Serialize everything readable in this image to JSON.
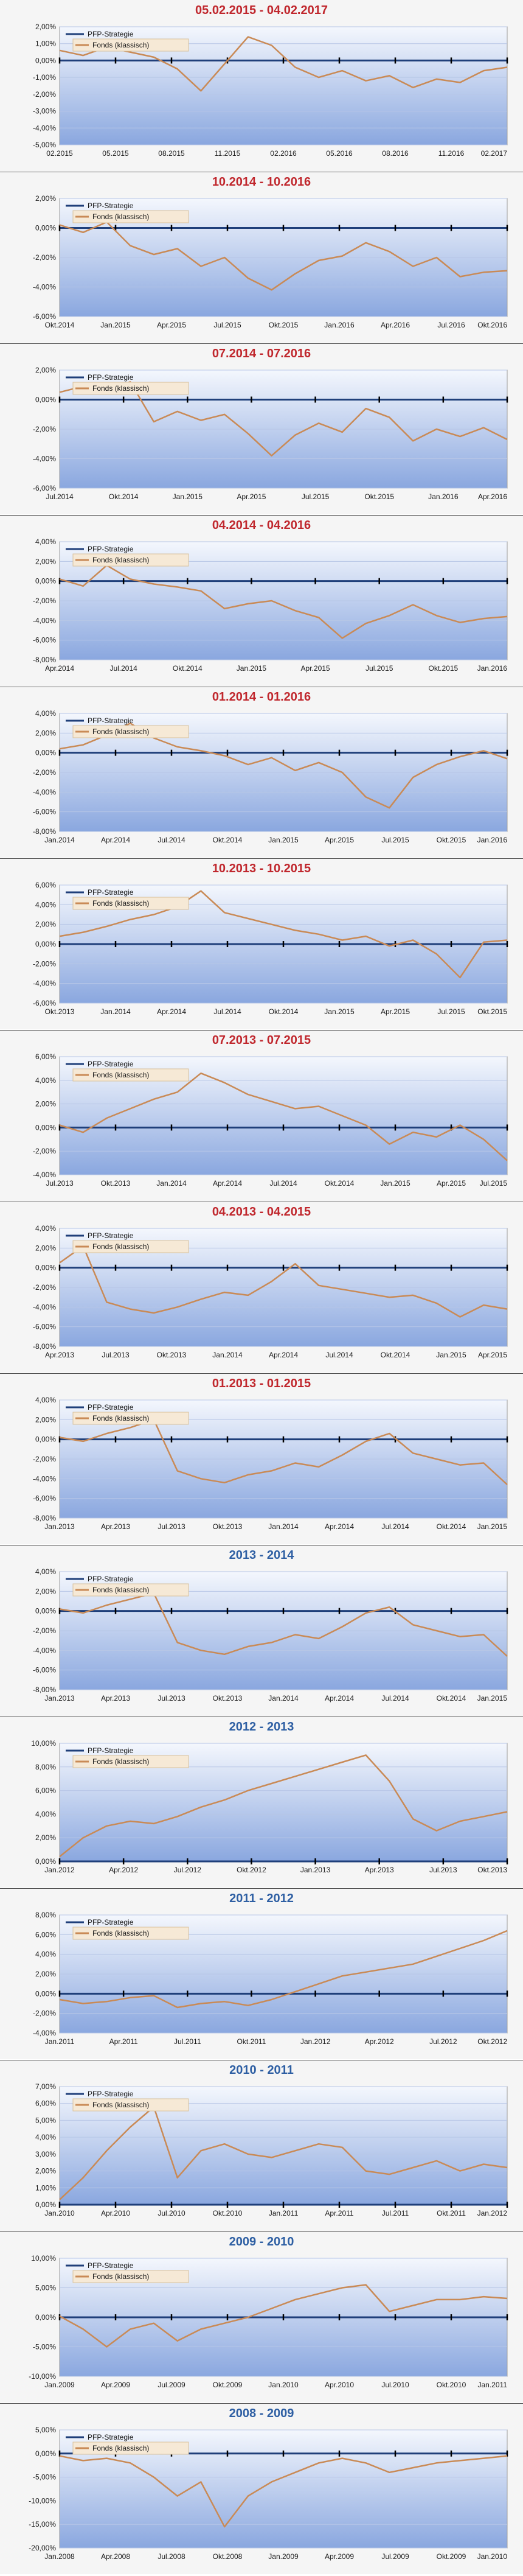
{
  "colors": {
    "title_red": "#c0272d",
    "title_blue": "#2e5fa3",
    "series_strategy": "#1f3f7a",
    "series_fund": "#c98a56",
    "plot_bg_top": "#f4f7fd",
    "plot_bg_bottom": "#8aa7df"
  },
  "legend": {
    "strategy": "PFP-Strategie",
    "fund": "Fonds (klassisch)"
  },
  "chart_data": [
    {
      "type": "line",
      "title": "05.02.2015 - 04.02.2017",
      "title_color": "red",
      "yticks": [
        "2,00%",
        "1,00%",
        "0,00%",
        "-1,00%",
        "-2,00%",
        "-3,00%",
        "-4,00%",
        "-5,00%"
      ],
      "ylim": [
        -5,
        2
      ],
      "xticks": [
        "02.2015",
        "05.2015",
        "08.2015",
        "11.2015",
        "02.2016",
        "05.2016",
        "08.2016",
        "11.2016",
        "02.2017"
      ],
      "series": [
        {
          "name": "PFP-Strategie",
          "values": [
            0,
            0
          ]
        },
        {
          "name": "Fonds (klassisch)",
          "values": [
            0.6,
            0.3,
            0.8,
            0.5,
            0.2,
            -0.5,
            -1.8,
            -0.2,
            1.4,
            0.9,
            -0.4,
            -1.0,
            -0.6,
            -1.2,
            -0.9,
            -1.6,
            -1.1,
            -1.3,
            -0.6,
            -0.4
          ]
        }
      ]
    },
    {
      "type": "line",
      "title": "10.2014 - 10.2016",
      "title_color": "red",
      "yticks": [
        "2,00%",
        "0,00%",
        "-2,00%",
        "-4,00%",
        "-6,00%"
      ],
      "ylim": [
        -6,
        2
      ],
      "xticks": [
        "Okt.2014",
        "Jan.2015",
        "Apr.2015",
        "Jul.2015",
        "Okt.2015",
        "Jan.2016",
        "Apr.2016",
        "Jul.2016",
        "Okt.2016"
      ],
      "series": [
        {
          "name": "PFP-Strategie",
          "values": [
            0,
            0
          ]
        },
        {
          "name": "Fonds (klassisch)",
          "values": [
            0.2,
            -0.3,
            0.4,
            -1.2,
            -1.8,
            -1.4,
            -2.6,
            -2.0,
            -3.4,
            -4.2,
            -3.1,
            -2.2,
            -1.9,
            -1.0,
            -1.6,
            -2.6,
            -2.0,
            -3.3,
            -3.0,
            -2.9
          ]
        }
      ]
    },
    {
      "type": "line",
      "title": "07.2014 - 07.2016",
      "title_color": "red",
      "yticks": [
        "2,00%",
        "0,00%",
        "-2,00%",
        "-4,00%",
        "-6,00%"
      ],
      "ylim": [
        -6,
        2
      ],
      "xticks": [
        "Jul.2014",
        "Okt.2014",
        "Jan.2015",
        "Apr.2015",
        "Jul.2015",
        "Okt.2015",
        "Jan.2016",
        "Apr.2016"
      ],
      "series": [
        {
          "name": "PFP-Strategie",
          "values": [
            0,
            0
          ]
        },
        {
          "name": "Fonds (klassisch)",
          "values": [
            0.5,
            0.9,
            0.7,
            1.2,
            -1.5,
            -0.8,
            -1.4,
            -1.0,
            -2.3,
            -3.8,
            -2.4,
            -1.6,
            -2.2,
            -0.6,
            -1.2,
            -2.8,
            -2.0,
            -2.5,
            -1.9,
            -2.7
          ]
        }
      ]
    },
    {
      "type": "line",
      "title": "04.2014 - 04.2016",
      "title_color": "red",
      "yticks": [
        "4,00%",
        "2,00%",
        "0,00%",
        "-2,00%",
        "-4,00%",
        "-6,00%",
        "-8,00%"
      ],
      "ylim": [
        -8,
        4
      ],
      "xticks": [
        "Apr.2014",
        "Jul.2014",
        "Okt.2014",
        "Jan.2015",
        "Apr.2015",
        "Jul.2015",
        "Okt.2015",
        "Jan.2016"
      ],
      "series": [
        {
          "name": "PFP-Strategie",
          "values": [
            0,
            0
          ]
        },
        {
          "name": "Fonds (klassisch)",
          "values": [
            0.2,
            -0.5,
            1.6,
            0.2,
            -0.3,
            -0.6,
            -1.0,
            -2.8,
            -2.3,
            -2.0,
            -3.0,
            -3.7,
            -5.8,
            -4.3,
            -3.5,
            -2.4,
            -3.5,
            -4.2,
            -3.8,
            -3.6
          ]
        }
      ]
    },
    {
      "type": "line",
      "title": "01.2014 - 01.2016",
      "title_color": "red",
      "yticks": [
        "4,00%",
        "2,00%",
        "0,00%",
        "-2,00%",
        "-4,00%",
        "-6,00%",
        "-8,00%"
      ],
      "ylim": [
        -8,
        4
      ],
      "xticks": [
        "Jan.2014",
        "Apr.2014",
        "Jul.2014",
        "Okt.2014",
        "Jan.2015",
        "Apr.2015",
        "Jul.2015",
        "Okt.2015",
        "Jan.2016"
      ],
      "series": [
        {
          "name": "PFP-Strategie",
          "values": [
            0,
            0
          ]
        },
        {
          "name": "Fonds (klassisch)",
          "values": [
            0.4,
            0.8,
            1.8,
            3.0,
            1.5,
            0.6,
            0.2,
            -0.3,
            -1.2,
            -0.5,
            -1.8,
            -1.0,
            -2.0,
            -4.5,
            -5.6,
            -2.5,
            -1.2,
            -0.4,
            0.2,
            -0.6
          ]
        }
      ]
    },
    {
      "type": "line",
      "title": "10.2013 - 10.2015",
      "title_color": "red",
      "yticks": [
        "6,00%",
        "4,00%",
        "2,00%",
        "0,00%",
        "-2,00%",
        "-4,00%",
        "-6,00%"
      ],
      "ylim": [
        -6,
        6
      ],
      "xticks": [
        "Okt.2013",
        "Jan.2014",
        "Apr.2014",
        "Jul.2014",
        "Okt.2014",
        "Jan.2015",
        "Apr.2015",
        "Jul.2015",
        "Okt.2015"
      ],
      "series": [
        {
          "name": "PFP-Strategie",
          "values": [
            0,
            0
          ]
        },
        {
          "name": "Fonds (klassisch)",
          "values": [
            0.8,
            1.2,
            1.8,
            2.5,
            3.0,
            3.8,
            5.4,
            3.2,
            2.6,
            2.0,
            1.4,
            1.0,
            0.4,
            0.8,
            -0.2,
            0.4,
            -1.0,
            -3.4,
            0.2,
            0.4
          ]
        }
      ]
    },
    {
      "type": "line",
      "title": "07.2013 - 07.2015",
      "title_color": "red",
      "yticks": [
        "6,00%",
        "4,00%",
        "2,00%",
        "0,00%",
        "-2,00%",
        "-4,00%"
      ],
      "ylim": [
        -4,
        6
      ],
      "xticks": [
        "Jul.2013",
        "Okt.2013",
        "Jan.2014",
        "Apr.2014",
        "Jul.2014",
        "Okt.2014",
        "Jan.2015",
        "Apr.2015",
        "Jul.2015"
      ],
      "series": [
        {
          "name": "PFP-Strategie",
          "values": [
            0,
            0
          ]
        },
        {
          "name": "Fonds (klassisch)",
          "values": [
            0.2,
            -0.4,
            0.8,
            1.6,
            2.4,
            3.0,
            4.6,
            3.8,
            2.8,
            2.2,
            1.6,
            1.8,
            1.0,
            0.2,
            -1.4,
            -0.4,
            -0.8,
            0.2,
            -1.0,
            -2.8
          ]
        }
      ]
    },
    {
      "type": "line",
      "title": "04.2013 - 04.2015",
      "title_color": "red",
      "yticks": [
        "4,00%",
        "2,00%",
        "0,00%",
        "-2,00%",
        "-4,00%",
        "-6,00%",
        "-8,00%"
      ],
      "ylim": [
        -8,
        4
      ],
      "xticks": [
        "Apr.2013",
        "Jul.2013",
        "Okt.2013",
        "Jan.2014",
        "Apr.2014",
        "Jul.2014",
        "Okt.2014",
        "Jan.2015",
        "Apr.2015"
      ],
      "series": [
        {
          "name": "PFP-Strategie",
          "values": [
            0,
            0
          ]
        },
        {
          "name": "Fonds (klassisch)",
          "values": [
            0.5,
            2.2,
            -3.5,
            -4.2,
            -4.6,
            -4.0,
            -3.2,
            -2.5,
            -2.8,
            -1.4,
            0.4,
            -1.8,
            -2.2,
            -2.6,
            -3.0,
            -2.8,
            -3.6,
            -5.0,
            -3.8,
            -4.2
          ]
        }
      ]
    },
    {
      "type": "line",
      "title": "01.2013 - 01.2015",
      "title_color": "red",
      "yticks": [
        "4,00%",
        "2,00%",
        "0,00%",
        "-2,00%",
        "-4,00%",
        "-6,00%",
        "-8,00%"
      ],
      "ylim": [
        -8,
        4
      ],
      "xticks": [
        "Jan.2013",
        "Apr.2013",
        "Jul.2013",
        "Okt.2013",
        "Jan.2014",
        "Apr.2014",
        "Jul.2014",
        "Okt.2014",
        "Jan.2015"
      ],
      "series": [
        {
          "name": "PFP-Strategie",
          "values": [
            0,
            0
          ]
        },
        {
          "name": "Fonds (klassisch)",
          "values": [
            0.2,
            -0.2,
            0.6,
            1.2,
            2.0,
            -3.2,
            -4.0,
            -4.4,
            -3.6,
            -3.2,
            -2.4,
            -2.8,
            -1.6,
            -0.2,
            0.6,
            -1.4,
            -2.0,
            -2.6,
            -2.4,
            -4.6
          ]
        }
      ]
    },
    {
      "type": "line",
      "title": "2013 - 2014",
      "title_color": "blue",
      "yticks": [
        "4,00%",
        "2,00%",
        "0,00%",
        "-2,00%",
        "-4,00%",
        "-6,00%",
        "-8,00%"
      ],
      "ylim": [
        -8,
        4
      ],
      "xticks": [
        "Jan.2013",
        "Apr.2013",
        "Jul.2013",
        "Okt.2013",
        "Jan.2014",
        "Apr.2014",
        "Jul.2014",
        "Okt.2014",
        "Jan.2015"
      ],
      "series": [
        {
          "name": "PFP-Strategie",
          "values": [
            0,
            0
          ]
        },
        {
          "name": "Fonds (klassisch)",
          "values": [
            0.2,
            -0.2,
            0.6,
            1.2,
            1.8,
            -3.2,
            -4.0,
            -4.4,
            -3.6,
            -3.2,
            -2.4,
            -2.8,
            -1.6,
            -0.2,
            0.4,
            -1.4,
            -2.0,
            -2.6,
            -2.4,
            -4.6
          ]
        }
      ]
    },
    {
      "type": "line",
      "title": "2012 - 2013",
      "title_color": "blue",
      "yticks": [
        "10,00%",
        "8,00%",
        "6,00%",
        "4,00%",
        "2,00%",
        "0,00%"
      ],
      "ylim": [
        0,
        10
      ],
      "xticks": [
        "Jan.2012",
        "Apr.2012",
        "Jul.2012",
        "Okt.2012",
        "Jan.2013",
        "Apr.2013",
        "Jul.2013",
        "Okt.2013"
      ],
      "series": [
        {
          "name": "PFP-Strategie",
          "values": [
            0,
            0
          ]
        },
        {
          "name": "Fonds (klassisch)",
          "values": [
            0.4,
            2.0,
            3.0,
            3.4,
            3.2,
            3.8,
            4.6,
            5.2,
            6.0,
            6.6,
            7.2,
            7.8,
            8.4,
            9.0,
            6.8,
            3.6,
            2.6,
            3.4,
            3.8,
            4.2
          ]
        }
      ]
    },
    {
      "type": "line",
      "title": "2011 - 2012",
      "title_color": "blue",
      "yticks": [
        "8,00%",
        "6,00%",
        "4,00%",
        "2,00%",
        "0,00%",
        "-2,00%",
        "-4,00%"
      ],
      "ylim": [
        -4,
        8
      ],
      "xticks": [
        "Jan.2011",
        "Apr.2011",
        "Jul.2011",
        "Okt.2011",
        "Jan.2012",
        "Apr.2012",
        "Jul.2012",
        "Okt.2012"
      ],
      "series": [
        {
          "name": "PFP-Strategie",
          "values": [
            0,
            0
          ]
        },
        {
          "name": "Fonds (klassisch)",
          "values": [
            -0.6,
            -1.0,
            -0.8,
            -0.4,
            -0.2,
            -1.4,
            -1.0,
            -0.8,
            -1.2,
            -0.6,
            0.2,
            1.0,
            1.8,
            2.2,
            2.6,
            3.0,
            3.8,
            4.6,
            5.4,
            6.4
          ]
        }
      ]
    },
    {
      "type": "line",
      "title": "2010 - 2011",
      "title_color": "blue",
      "yticks": [
        "7,00%",
        "6,00%",
        "5,00%",
        "4,00%",
        "3,00%",
        "2,00%",
        "1,00%",
        "0,00%"
      ],
      "ylim": [
        0,
        7
      ],
      "xticks": [
        "Jan.2010",
        "Apr.2010",
        "Jul.2010",
        "Okt.2010",
        "Jan.2011",
        "Apr.2011",
        "Jul.2011",
        "Okt.2011",
        "Jan.2012"
      ],
      "series": [
        {
          "name": "PFP-Strategie",
          "values": [
            0,
            0
          ]
        },
        {
          "name": "Fonds (klassisch)",
          "values": [
            0.3,
            1.6,
            3.2,
            4.6,
            5.8,
            1.6,
            3.2,
            3.6,
            3.0,
            2.8,
            3.2,
            3.6,
            3.4,
            2.0,
            1.8,
            2.2,
            2.6,
            2.0,
            2.4,
            2.2
          ]
        }
      ]
    },
    {
      "type": "line",
      "title": "2009 - 2010",
      "title_color": "blue",
      "yticks": [
        "10,00%",
        "5,00%",
        "0,00%",
        "-5,00%",
        "-10,00%"
      ],
      "ylim": [
        -10,
        10
      ],
      "xticks": [
        "Jan.2009",
        "Apr.2009",
        "Jul.2009",
        "Okt.2009",
        "Jan.2010",
        "Apr.2010",
        "Jul.2010",
        "Okt.2010",
        "Jan.2011"
      ],
      "series": [
        {
          "name": "PFP-Strategie",
          "values": [
            0,
            0
          ]
        },
        {
          "name": "Fonds (klassisch)",
          "values": [
            0.2,
            -2.0,
            -5.0,
            -2.0,
            -1.0,
            -4.0,
            -2.0,
            -1.0,
            0.0,
            1.5,
            3.0,
            4.0,
            5.0,
            5.5,
            1.0,
            2.0,
            3.0,
            3.0,
            3.5,
            3.2
          ]
        }
      ]
    },
    {
      "type": "line",
      "title": "2008 - 2009",
      "title_color": "blue",
      "yticks": [
        "5,00%",
        "0,00%",
        "-5,00%",
        "-10,00%",
        "-15,00%",
        "-20,00%"
      ],
      "ylim": [
        -20,
        5
      ],
      "xticks": [
        "Jan.2008",
        "Apr.2008",
        "Jul.2008",
        "Okt.2008",
        "Jan.2009",
        "Apr.2009",
        "Jul.2009",
        "Okt.2009",
        "Jan.2010"
      ],
      "series": [
        {
          "name": "PFP-Strategie",
          "values": [
            0,
            0
          ]
        },
        {
          "name": "Fonds (klassisch)",
          "values": [
            -0.5,
            -1.5,
            -1.0,
            -2.0,
            -5.0,
            -9.0,
            -6.0,
            -15.5,
            -9.0,
            -6.0,
            -4.0,
            -2.0,
            -1.0,
            -2.0,
            -4.0,
            -3.0,
            -2.0,
            -1.5,
            -1.0,
            -0.5
          ]
        }
      ]
    }
  ]
}
